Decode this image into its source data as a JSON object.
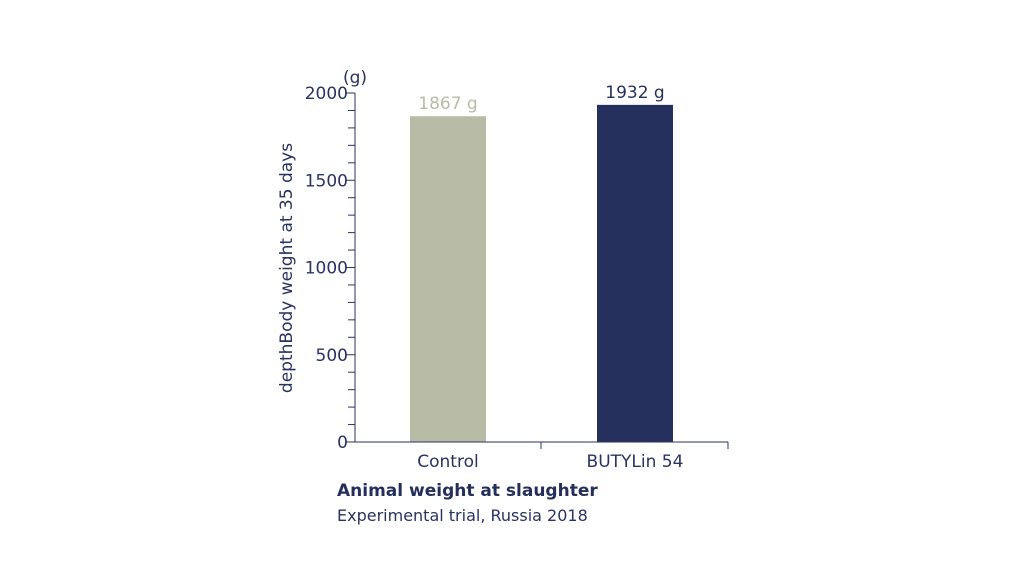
{
  "chart_data": {
    "type": "bar",
    "title": "Animal weight at slaughter",
    "subtitle": "Experimental trial, Russia 2018",
    "ylabel": "depthBody weight at 35 days",
    "yunit": "(g)",
    "ylim": [
      0,
      2000
    ],
    "ytick_labels": [
      "0",
      "500",
      "1000",
      "1500",
      "2000"
    ],
    "yticks": [
      0,
      500,
      1000,
      1500,
      2000
    ],
    "minor_tick_step": 100,
    "grid": false,
    "categories": [
      "Control",
      "BUTYLin 54"
    ],
    "values": [
      1867,
      1932
    ],
    "data_labels": [
      "1867 g",
      "1932 g"
    ],
    "colors": [
      "#b8bba6",
      "#25305c"
    ],
    "label_colors": [
      "#b8bba6",
      "#25305c"
    ],
    "axis_color": "#2a3260"
  }
}
